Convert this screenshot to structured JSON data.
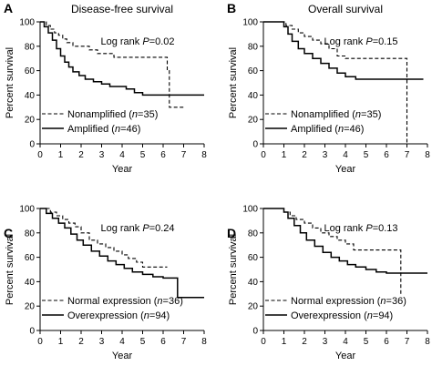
{
  "chart_data": [
    {
      "panel": "A",
      "type": "line",
      "title": "Disease-free survival",
      "xlabel": "Year",
      "ylabel": "Percent survival",
      "xlim": [
        0,
        8
      ],
      "ylim": [
        0,
        100
      ],
      "xticks": [
        0,
        1,
        2,
        3,
        4,
        5,
        6,
        7,
        8
      ],
      "yticks": [
        0,
        20,
        40,
        60,
        80,
        100
      ],
      "annotation_prefix": "Log rank ",
      "annotation_p": "P",
      "annotation_value": "=0.02",
      "legend": "bottom-left",
      "series": [
        {
          "name_prefix": "Nonamplified (",
          "name_italic": "n",
          "name_suffix": "=35)",
          "style": "dashed",
          "x": [
            0,
            0.3,
            0.5,
            0.7,
            0.9,
            1.1,
            1.3,
            1.6,
            2.0,
            2.4,
            2.8,
            3.1,
            3.6,
            4.1,
            4.5,
            5.0,
            6.0,
            6.2,
            6.3,
            6.8,
            7.0
          ],
          "y": [
            100,
            97,
            94,
            91,
            89,
            86,
            83,
            80,
            80,
            77,
            74,
            74,
            71,
            71,
            71,
            71,
            71,
            60,
            30,
            30,
            30
          ]
        },
        {
          "name_prefix": "Amplified (",
          "name_italic": "n",
          "name_suffix": "=46)",
          "style": "solid",
          "x": [
            0,
            0.2,
            0.4,
            0.6,
            0.8,
            1.0,
            1.2,
            1.4,
            1.6,
            1.9,
            2.2,
            2.6,
            3.0,
            3.4,
            3.8,
            4.2,
            4.6,
            5.0,
            5.5,
            6.0,
            6.5,
            7.0,
            7.5,
            8.0
          ],
          "y": [
            100,
            96,
            91,
            85,
            78,
            72,
            67,
            63,
            59,
            56,
            53,
            51,
            49,
            47,
            47,
            45,
            42,
            40,
            40,
            40,
            40,
            40,
            40,
            40
          ]
        }
      ]
    },
    {
      "panel": "B",
      "type": "line",
      "title": "Overall survival",
      "xlabel": "Year",
      "ylabel": "Percent survival",
      "xlim": [
        0,
        8
      ],
      "ylim": [
        0,
        100
      ],
      "xticks": [
        0,
        1,
        2,
        3,
        4,
        5,
        6,
        7,
        8
      ],
      "yticks": [
        0,
        20,
        40,
        60,
        80,
        100
      ],
      "annotation_prefix": "Log rank ",
      "annotation_p": "P",
      "annotation_value": "=0.15",
      "legend": "bottom-left",
      "series": [
        {
          "name_prefix": "Nonamplified (",
          "name_italic": "n",
          "name_suffix": "=35)",
          "style": "dashed",
          "x": [
            0,
            1.0,
            1.1,
            1.4,
            1.7,
            2.0,
            2.4,
            2.8,
            3.2,
            3.6,
            4.0,
            4.5,
            5.0,
            6.0,
            6.9,
            7.0,
            7.0
          ],
          "y": [
            100,
            100,
            97,
            94,
            91,
            88,
            85,
            82,
            78,
            72,
            70,
            70,
            70,
            70,
            70,
            70,
            0
          ]
        },
        {
          "name_prefix": "Amplified (",
          "name_italic": "n",
          "name_suffix": "=46)",
          "style": "solid",
          "x": [
            0,
            0.9,
            1.0,
            1.2,
            1.4,
            1.7,
            2.0,
            2.4,
            2.8,
            3.2,
            3.6,
            4.0,
            4.5,
            5.0,
            6.0,
            7.0,
            7.8
          ],
          "y": [
            100,
            100,
            96,
            90,
            84,
            78,
            74,
            70,
            66,
            62,
            58,
            55,
            53,
            53,
            53,
            53,
            53
          ]
        }
      ]
    },
    {
      "panel": "C",
      "type": "line",
      "title": "",
      "xlabel": "Year",
      "ylabel": "Percent survival",
      "xlim": [
        0,
        8
      ],
      "ylim": [
        0,
        100
      ],
      "xticks": [
        0,
        1,
        2,
        3,
        4,
        5,
        6,
        7,
        8
      ],
      "yticks": [
        0,
        20,
        40,
        60,
        80,
        100
      ],
      "annotation_prefix": "Log rank ",
      "annotation_p": "P",
      "annotation_value": "=0.24",
      "legend": "bottom-left",
      "series": [
        {
          "name_prefix": "Normal expression (",
          "name_italic": "n",
          "name_suffix": "=36)",
          "style": "dashed",
          "x": [
            0,
            0.5,
            0.8,
            1.1,
            1.4,
            1.7,
            2.0,
            2.4,
            2.8,
            3.2,
            3.6,
            4.0,
            4.3,
            4.7,
            5.0,
            5.5,
            6.0,
            6.2
          ],
          "y": [
            100,
            97,
            94,
            91,
            88,
            85,
            80,
            74,
            71,
            68,
            65,
            62,
            59,
            56,
            52,
            52,
            52,
            52
          ]
        },
        {
          "name_prefix": "Overexpression (",
          "name_italic": "n",
          "name_suffix": "=94)",
          "style": "solid",
          "x": [
            0,
            0.3,
            0.6,
            0.9,
            1.2,
            1.5,
            1.8,
            2.1,
            2.5,
            2.9,
            3.3,
            3.7,
            4.1,
            4.5,
            5.0,
            5.5,
            6.0,
            6.5,
            6.7,
            7.0,
            8.0
          ],
          "y": [
            100,
            96,
            92,
            88,
            84,
            79,
            74,
            70,
            65,
            61,
            57,
            54,
            51,
            48,
            46,
            44,
            43,
            43,
            27,
            27,
            27
          ]
        }
      ]
    },
    {
      "panel": "D",
      "type": "line",
      "title": "",
      "xlabel": "Year",
      "ylabel": "Percent survival",
      "xlim": [
        0,
        8
      ],
      "ylim": [
        0,
        100
      ],
      "xticks": [
        0,
        1,
        2,
        3,
        4,
        5,
        6,
        7,
        8
      ],
      "yticks": [
        0,
        20,
        40,
        60,
        80,
        100
      ],
      "annotation_prefix": "Log rank ",
      "annotation_p": "P",
      "annotation_value": "=0.13",
      "legend": "bottom-left",
      "series": [
        {
          "name_prefix": "Normal expression (",
          "name_italic": "n",
          "name_suffix": "=36)",
          "style": "dashed",
          "x": [
            0,
            0.9,
            1.0,
            1.3,
            1.6,
            2.0,
            2.4,
            2.8,
            3.2,
            3.6,
            4.0,
            4.4,
            5.0,
            6.0,
            6.6,
            6.7,
            6.7
          ],
          "y": [
            100,
            100,
            97,
            94,
            91,
            88,
            84,
            80,
            77,
            74,
            71,
            66,
            66,
            66,
            66,
            66,
            30
          ]
        },
        {
          "name_prefix": "Overexpression (",
          "name_italic": "n",
          "name_suffix": "=94)",
          "style": "solid",
          "x": [
            0,
            0.9,
            1.0,
            1.2,
            1.5,
            1.8,
            2.1,
            2.5,
            2.9,
            3.3,
            3.7,
            4.1,
            4.5,
            5.0,
            5.5,
            6.0,
            7.0,
            8.0
          ],
          "y": [
            100,
            100,
            97,
            92,
            86,
            80,
            74,
            69,
            64,
            60,
            57,
            54,
            52,
            50,
            48,
            47,
            47,
            47
          ]
        }
      ]
    }
  ]
}
